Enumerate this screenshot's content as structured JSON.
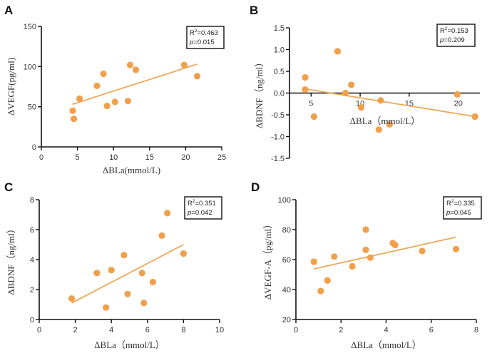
{
  "colors": {
    "point": "#f0a04b",
    "line": "#eea85a",
    "axis": "#111111"
  },
  "chart_data": [
    {
      "id": "A",
      "type": "scatter",
      "panel_label": "A",
      "xlabel": "ΔBLa(mmol/L)",
      "ylabel": "ΔVEGF(pg/ml)",
      "xlim": [
        0,
        25
      ],
      "ylim": [
        0,
        150
      ],
      "xticks": [
        0,
        5,
        10,
        15,
        20,
        25
      ],
      "yticks": [
        0,
        50,
        100,
        150
      ],
      "xtick_labels": [
        "0",
        "5",
        "10",
        "15",
        "20",
        "25"
      ],
      "ytick_labels": [
        "0",
        "50",
        "100",
        "150"
      ],
      "points": [
        {
          "x": 4.35,
          "y": 45
        },
        {
          "x": 4.5,
          "y": 35
        },
        {
          "x": 5.3,
          "y": 60
        },
        {
          "x": 7.7,
          "y": 76
        },
        {
          "x": 8.6,
          "y": 91
        },
        {
          "x": 9.1,
          "y": 51
        },
        {
          "x": 10.2,
          "y": 56
        },
        {
          "x": 12.0,
          "y": 57
        },
        {
          "x": 12.3,
          "y": 102
        },
        {
          "x": 13.1,
          "y": 96
        },
        {
          "x": 19.8,
          "y": 102
        },
        {
          "x": 21.6,
          "y": 88
        }
      ],
      "fit_line": {
        "x": [
          4.3,
          21.6
        ],
        "y": [
          53,
          103
        ]
      },
      "annotation": {
        "r2_label": "R",
        "r2_sup": "2",
        "r2_value": "=0.463",
        "p_label": "p",
        "p_value": "=0.015"
      },
      "x_axis_at_y": 0,
      "xlabel_position": "below-axis"
    },
    {
      "id": "B",
      "type": "scatter",
      "panel_label": "B",
      "xlabel": "ΔBLa（mmol/L）",
      "ylabel": "ΔBDNF（ng/ml）",
      "xlim": [
        2.8,
        22.2
      ],
      "ylim": [
        -1.5,
        1.5
      ],
      "xticks": [
        5,
        10,
        15,
        20
      ],
      "yticks": [
        -1.5,
        -1.0,
        -0.5,
        0.0,
        0.5,
        1.0,
        1.5
      ],
      "xtick_labels": [
        "5",
        "10",
        "15",
        "20"
      ],
      "ytick_labels": [
        "-1.5",
        "-1.0",
        "-0.5",
        "0.0",
        "0.5",
        "1.0",
        "1.5"
      ],
      "points": [
        {
          "x": 4.4,
          "y": 0.08
        },
        {
          "x": 4.4,
          "y": 0.36
        },
        {
          "x": 7.7,
          "y": 0.96
        },
        {
          "x": 5.3,
          "y": -0.54
        },
        {
          "x": 8.5,
          "y": 0.0
        },
        {
          "x": 9.1,
          "y": 0.19
        },
        {
          "x": 10.1,
          "y": -0.33
        },
        {
          "x": 12.1,
          "y": -0.17
        },
        {
          "x": 11.9,
          "y": -0.84
        },
        {
          "x": 13.0,
          "y": -0.72
        },
        {
          "x": 19.9,
          "y": -0.03
        },
        {
          "x": 21.7,
          "y": -0.54
        }
      ],
      "fit_line": {
        "x": [
          4.3,
          21.7
        ],
        "y": [
          0.1,
          -0.54
        ]
      },
      "annotation": {
        "r2_label": "R",
        "r2_sup": "2",
        "r2_value": "=0.153",
        "p_label": "p",
        "p_value": "=0.209"
      },
      "x_axis_at_y": 0,
      "xlabel_position": "inside-plot"
    },
    {
      "id": "C",
      "type": "scatter",
      "panel_label": "C",
      "xlabel": "ΔBLa（mmol/L）",
      "ylabel": "ΔBDNF（ng/ml）",
      "xlim": [
        0,
        10
      ],
      "ylim": [
        0,
        8
      ],
      "xticks": [
        0,
        2,
        4,
        6,
        8,
        10
      ],
      "yticks": [
        0,
        2,
        4,
        6,
        8
      ],
      "xtick_labels": [
        "0",
        "2",
        "4",
        "6",
        "8",
        "10"
      ],
      "ytick_labels": [
        "0",
        "2",
        "4",
        "6",
        "8"
      ],
      "points": [
        {
          "x": 1.8,
          "y": 1.4
        },
        {
          "x": 3.2,
          "y": 3.1
        },
        {
          "x": 4.0,
          "y": 3.3
        },
        {
          "x": 3.7,
          "y": 0.8
        },
        {
          "x": 4.7,
          "y": 4.3
        },
        {
          "x": 4.9,
          "y": 1.7
        },
        {
          "x": 5.7,
          "y": 3.1
        },
        {
          "x": 6.3,
          "y": 2.5
        },
        {
          "x": 5.8,
          "y": 1.1
        },
        {
          "x": 6.8,
          "y": 5.6
        },
        {
          "x": 7.1,
          "y": 7.1
        },
        {
          "x": 8.0,
          "y": 4.4
        }
      ],
      "fit_line": {
        "x": [
          1.8,
          8.0
        ],
        "y": [
          1.1,
          5.0
        ]
      },
      "annotation": {
        "r2_label": "R",
        "r2_sup": "2",
        "r2_value": "=0.351",
        "p_label": "p",
        "p_value": "=0.042"
      },
      "x_axis_at_y": 0,
      "xlabel_position": "below-axis"
    },
    {
      "id": "D",
      "type": "scatter",
      "panel_label": "D",
      "xlabel": "ΔBLa（mmol/L）",
      "ylabel": "ΔVEGF-A（pg/ml）",
      "xlim": [
        0,
        8
      ],
      "ylim": [
        20,
        100
      ],
      "xticks": [
        0,
        2,
        4,
        6,
        8
      ],
      "yticks": [
        20,
        40,
        60,
        80,
        100
      ],
      "xtick_labels": [
        "0",
        "2",
        "4",
        "6",
        "8"
      ],
      "ytick_labels": [
        "20",
        "40",
        "60",
        "80",
        "100"
      ],
      "points": [
        {
          "x": 0.8,
          "y": 58.6
        },
        {
          "x": 1.1,
          "y": 39
        },
        {
          "x": 1.4,
          "y": 46
        },
        {
          "x": 1.7,
          "y": 62
        },
        {
          "x": 2.5,
          "y": 55.5
        },
        {
          "x": 3.1,
          "y": 80
        },
        {
          "x": 3.1,
          "y": 66.5
        },
        {
          "x": 3.3,
          "y": 61.3
        },
        {
          "x": 4.3,
          "y": 71
        },
        {
          "x": 4.4,
          "y": 69.7
        },
        {
          "x": 5.6,
          "y": 65.7
        },
        {
          "x": 7.1,
          "y": 67
        }
      ],
      "fit_line": {
        "x": [
          0.8,
          7.1
        ],
        "y": [
          53.8,
          75
        ]
      },
      "annotation": {
        "r2_label": "R",
        "r2_sup": "2",
        "r2_value": "=0.335",
        "p_label": "p",
        "p_value": "=0.045"
      },
      "x_axis_at_y": 20,
      "xlabel_position": "below-axis"
    }
  ]
}
